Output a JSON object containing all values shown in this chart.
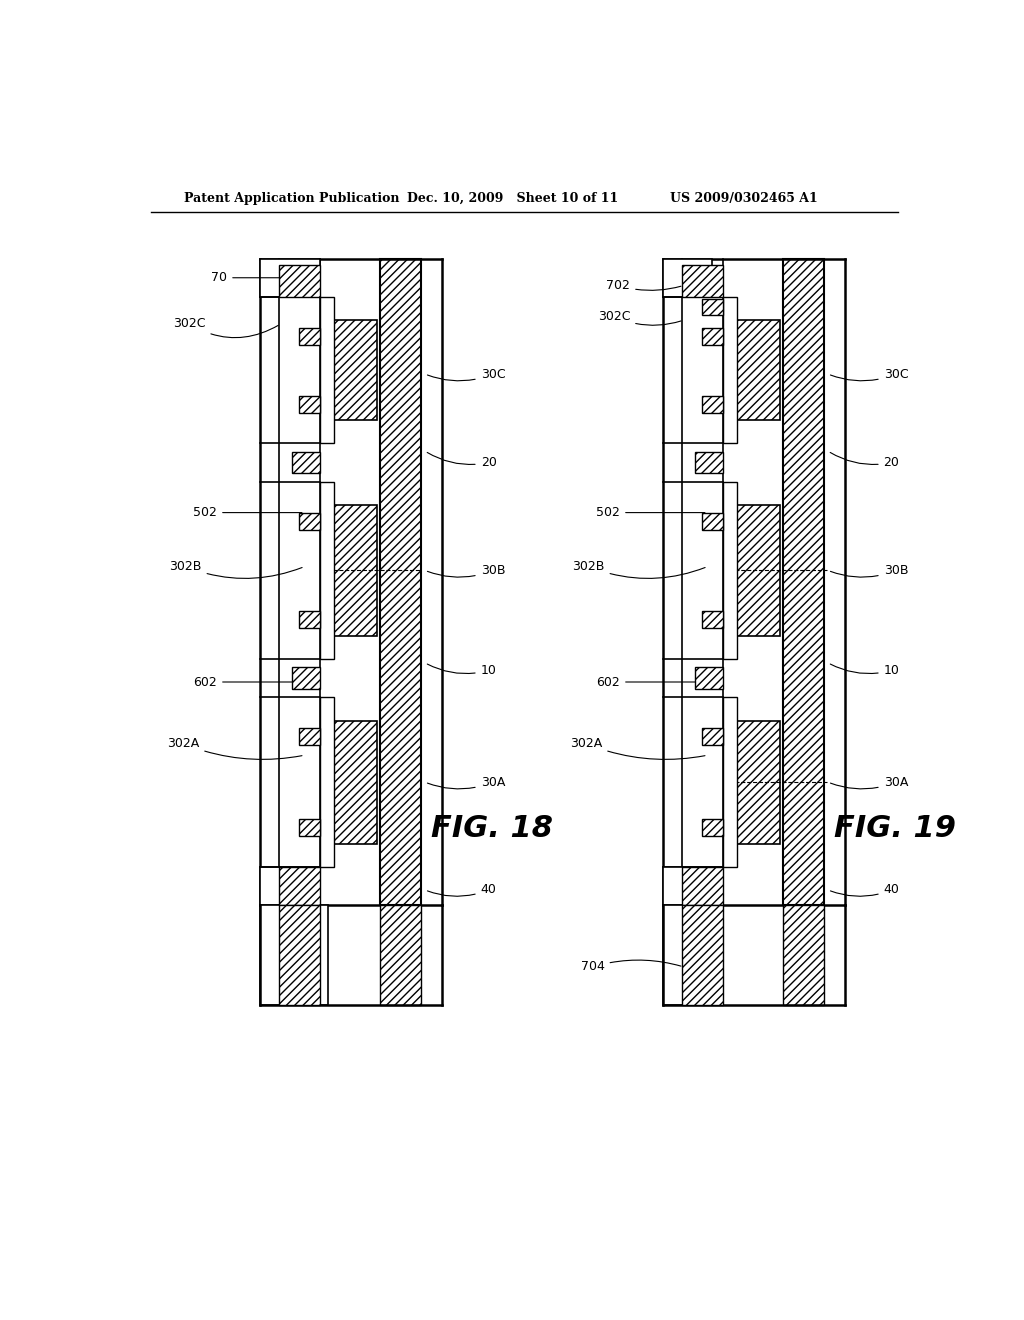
{
  "header_left": "Patent Application Publication",
  "header_mid": "Dec. 10, 2009   Sheet 10 of 11",
  "header_right": "US 2009/0302465 A1",
  "fig18_label": "FIG. 18",
  "fig19_label": "FIG. 19",
  "bg_color": "#ffffff"
}
